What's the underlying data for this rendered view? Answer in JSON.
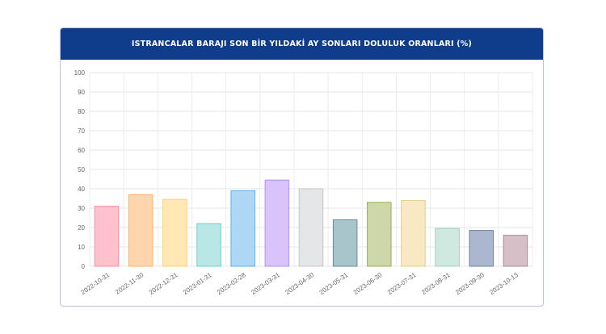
{
  "chart_data": {
    "type": "bar",
    "title": "ISTRANCALAR BARAJI SON BİR YILDAKİ AY SONLARI DOLULUK ORANLARI (%)",
    "xlabel": "",
    "ylabel": "",
    "ylim": [
      0,
      100
    ],
    "yticks": [
      "0",
      "10",
      "20",
      "30",
      "40",
      "50",
      "60",
      "70",
      "80",
      "90",
      "100"
    ],
    "grid": true,
    "categories": [
      "2022-10-31",
      "2022-11-30",
      "2022-12-31",
      "2023-01-31",
      "2023-02-28",
      "2023-03-31",
      "2023-04-30",
      "2023-05-31",
      "2023-06-30",
      "2023-07-31",
      "2023-08-31",
      "2023-09-30",
      "2023-10-13"
    ],
    "values": [
      31,
      37,
      34.5,
      22,
      39,
      44.5,
      40,
      24,
      33,
      34,
      19.5,
      18.5,
      16
    ],
    "fill_colors": [
      "#ffc2cd",
      "#ffd5ad",
      "#ffe8b4",
      "#b8e7e6",
      "#aed7f5",
      "#d8c4fb",
      "#e5e6e8",
      "#a9c5cc",
      "#cdd7aa",
      "#f8e8c4",
      "#cfe9e0",
      "#aab7cf",
      "#d6bfc6"
    ],
    "border_colors": [
      "#ff8aa3",
      "#ffb26b",
      "#ffd26b",
      "#6fcfcd",
      "#5fb0ea",
      "#b28cf6",
      "#c3c6cb",
      "#5f8e99",
      "#9cae55",
      "#e9cc8a",
      "#9fcfc0",
      "#6e82a8",
      "#b08a96"
    ]
  }
}
